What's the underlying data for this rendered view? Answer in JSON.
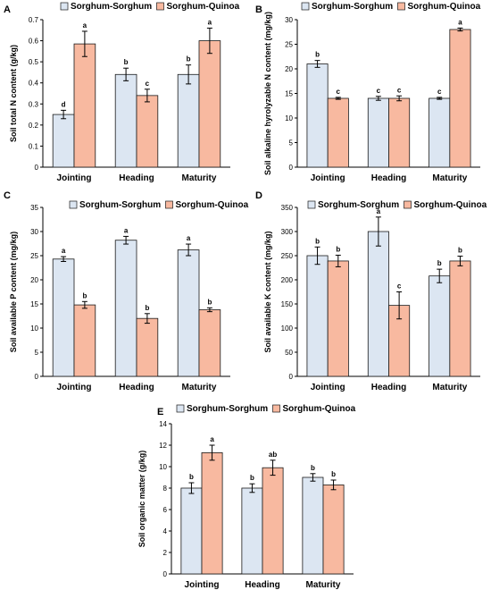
{
  "colors": {
    "sorghum": "#dce6f2",
    "quinoa": "#f8b9a0",
    "stroke": "#1a1a1a"
  },
  "chart_data": [
    {
      "panel": "A",
      "type": "bar",
      "categories": [
        "Jointing",
        "Heading",
        "Maturity"
      ],
      "ylabel": "Soil total N content (g/kg)",
      "ylim": [
        0,
        0.7
      ],
      "yticks": [
        "0",
        "0.1",
        "0.2",
        "0.3",
        "0.4",
        "0.5",
        "0.6",
        "0.7"
      ],
      "legend": [
        "Sorghum-Sorghum",
        "Sorghum-Quinoa"
      ],
      "series": [
        {
          "name": "Sorghum-Sorghum",
          "values": [
            0.25,
            0.44,
            0.44
          ],
          "errors": [
            0.02,
            0.03,
            0.045
          ],
          "letters": [
            "d",
            "b",
            "b"
          ]
        },
        {
          "name": "Sorghum-Quinoa",
          "values": [
            0.585,
            0.34,
            0.6
          ],
          "errors": [
            0.06,
            0.03,
            0.06
          ],
          "letters": [
            "a",
            "c",
            "a"
          ]
        }
      ]
    },
    {
      "panel": "B",
      "type": "bar",
      "categories": [
        "Jointing",
        "Heading",
        "Maturity"
      ],
      "ylabel": "Soil alkaline hyrolyzable N content (mg/kg)",
      "ylim": [
        0,
        30
      ],
      "yticks": [
        "0",
        "5",
        "10",
        "15",
        "20",
        "25",
        "30"
      ],
      "legend": [
        "Sorghum-Sorghum",
        "Sorghum-Quinoa"
      ],
      "series": [
        {
          "name": "Sorghum-Sorghum",
          "values": [
            21,
            14,
            14
          ],
          "errors": [
            0.7,
            0.4,
            0.2
          ],
          "letters": [
            "b",
            "c",
            "c"
          ]
        },
        {
          "name": "Sorghum-Quinoa",
          "values": [
            14,
            14,
            28
          ],
          "errors": [
            0.2,
            0.5,
            0.3
          ],
          "letters": [
            "c",
            "c",
            "a"
          ]
        }
      ]
    },
    {
      "panel": "C",
      "type": "bar",
      "categories": [
        "Jointing",
        "Heading",
        "Maturity"
      ],
      "ylabel": "Soil available P content (mg/kg)",
      "ylim": [
        0,
        35
      ],
      "yticks": [
        "0",
        "5",
        "10",
        "15",
        "20",
        "25",
        "30",
        "35"
      ],
      "legend": [
        "Sorghum-Sorghum",
        "Sorghum-Quinoa"
      ],
      "series": [
        {
          "name": "Sorghum-Sorghum",
          "values": [
            24.3,
            28.2,
            26.2
          ],
          "errors": [
            0.5,
            0.8,
            1.2
          ],
          "letters": [
            "a",
            "a",
            "a"
          ]
        },
        {
          "name": "Sorghum-Quinoa",
          "values": [
            14.8,
            12.0,
            13.8
          ],
          "errors": [
            0.7,
            1.0,
            0.4
          ],
          "letters": [
            "b",
            "b",
            "b"
          ]
        }
      ]
    },
    {
      "panel": "D",
      "type": "bar",
      "categories": [
        "Jointing",
        "Heading",
        "Maturity"
      ],
      "ylabel": "Soil available K content (mg/kg)",
      "ylim": [
        0,
        350
      ],
      "yticks": [
        "0",
        "50",
        "100",
        "150",
        "200",
        "250",
        "300",
        "350"
      ],
      "legend": [
        "Sorghum-Sorghum",
        "Sorghum-Quinoa"
      ],
      "series": [
        {
          "name": "Sorghum-Sorghum",
          "values": [
            250,
            300,
            208
          ],
          "errors": [
            18,
            30,
            14
          ],
          "letters": [
            "b",
            "a",
            "b"
          ]
        },
        {
          "name": "Sorghum-Quinoa",
          "values": [
            239,
            147,
            239
          ],
          "errors": [
            12,
            28,
            10
          ],
          "letters": [
            "b",
            "c",
            "b"
          ]
        }
      ]
    },
    {
      "panel": "E",
      "type": "bar",
      "categories": [
        "Jointing",
        "Heading",
        "Maturity"
      ],
      "ylabel": "Soil organic matter (g/kg)",
      "ylim": [
        0,
        14
      ],
      "yticks": [
        "0",
        "2",
        "4",
        "6",
        "8",
        "10",
        "12",
        "14"
      ],
      "legend": [
        "Sorghum-Sorghum",
        "Sorghum-Quinoa"
      ],
      "series": [
        {
          "name": "Sorghum-Sorghum",
          "values": [
            8.0,
            8.0,
            9.0
          ],
          "errors": [
            0.5,
            0.4,
            0.35
          ],
          "letters": [
            "b",
            "b",
            "b"
          ]
        },
        {
          "name": "Sorghum-Quinoa",
          "values": [
            11.3,
            9.9,
            8.3
          ],
          "errors": [
            0.7,
            0.7,
            0.45
          ],
          "letters": [
            "a",
            "ab",
            "b"
          ]
        }
      ]
    }
  ]
}
